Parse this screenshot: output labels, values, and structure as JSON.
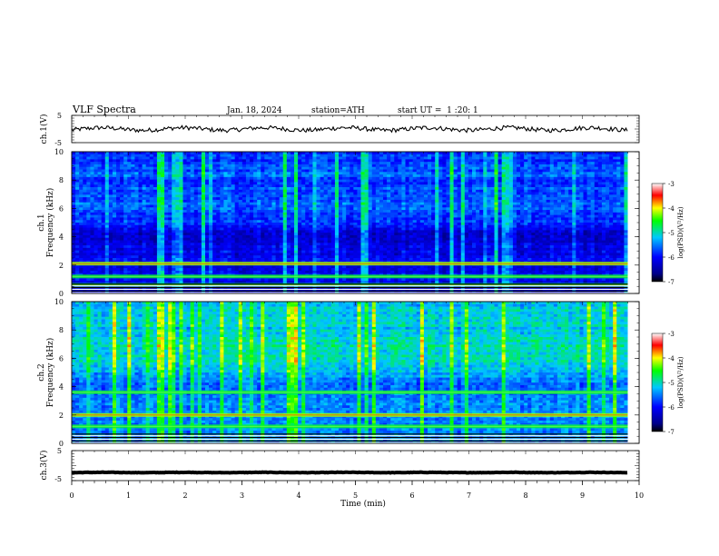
{
  "header": {
    "title": "VLF Spectra",
    "date": "Jan. 18, 2024",
    "station": "station=ATH",
    "start": "start UT =  1 :20: 1"
  },
  "chart_data": {
    "type": "heatmap",
    "x": {
      "label": "Time (min)",
      "range": [
        0,
        10
      ],
      "ticks": [
        "0",
        "1",
        "2",
        "3",
        "4",
        "5",
        "6",
        "7",
        "8",
        "9",
        "10"
      ]
    },
    "panels": [
      {
        "type": "line",
        "ylabel": "ch.1(V)",
        "yticks": [
          "5",
          "-5"
        ],
        "ylim": [
          -5,
          5
        ],
        "series_level": 0,
        "series_end_min": 9.8
      },
      {
        "type": "heatmap",
        "ylabel_top": "ch.1",
        "ylabel": "Frequency (kHz)",
        "yticks": [
          "0",
          "2",
          "4",
          "6",
          "8",
          "10"
        ],
        "ylim": [
          0,
          10
        ],
        "data_end_min": 9.8,
        "bands_khz": [
          2.1,
          1.2,
          0.6
        ]
      },
      {
        "type": "heatmap",
        "ylabel_top": "ch.2",
        "ylabel": "Frequency (kHz)",
        "yticks": [
          "0",
          "2",
          "4",
          "6",
          "8",
          "10"
        ],
        "ylim": [
          0,
          10
        ],
        "data_end_min": 9.8,
        "bands_khz": [
          2.0,
          3.6,
          1.2
        ]
      },
      {
        "type": "line",
        "ylabel": "ch.3(V)",
        "yticks": [
          "5",
          "-5"
        ],
        "ylim": [
          -5,
          5
        ],
        "series_level": -2.3,
        "series_end_min": 9.8
      }
    ],
    "colorbar": {
      "label": "log(PSD)(V²/Hz)",
      "ticks": [
        "-3",
        "-4",
        "-5",
        "-6",
        "-7"
      ],
      "range": [
        -7,
        -3
      ],
      "colors": [
        "#000000",
        "#0000ff",
        "#00aaff",
        "#00ff00",
        "#ffff00",
        "#ff0000",
        "#ffffff"
      ]
    }
  }
}
